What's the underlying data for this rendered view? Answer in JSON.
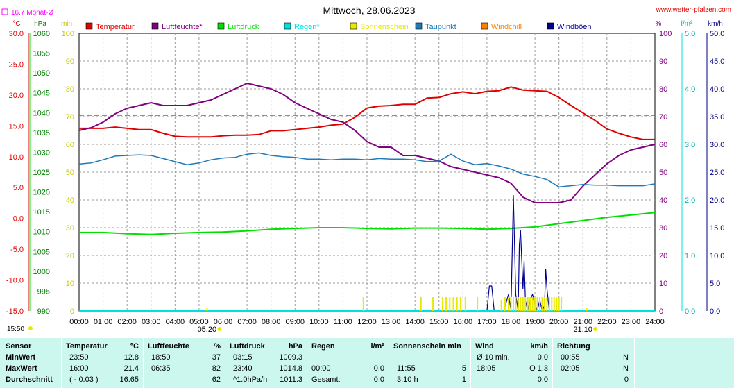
{
  "header": {
    "title": "Mittwoch, 28.06.2023",
    "site": "www.wetter-pfalzen.com",
    "monthly_avg": "16.7 Monat-Ø",
    "left_units": [
      "°C",
      "hPa",
      "min"
    ],
    "right_units": [
      "%",
      "l/m²",
      "km/h"
    ]
  },
  "legend": [
    {
      "label": "Temperatur",
      "color": "#e00000"
    },
    {
      "label": "Luftfeuchte*",
      "color": "#800080"
    },
    {
      "label": "Luftdruck",
      "color": "#00e000"
    },
    {
      "label": "Regen*",
      "color": "#00e0e0"
    },
    {
      "label": "Sonnenschein",
      "color": "#e8e800"
    },
    {
      "label": "Taupunkt",
      "color": "#1e7ab8"
    },
    {
      "label": "Windchill",
      "color": "#ff8000"
    },
    {
      "label": "Windböen",
      "color": "#000090"
    }
  ],
  "axes": {
    "temp_ticks": [
      "30.0",
      "25.0",
      "20.0",
      "15.0",
      "10.0",
      "5.0",
      "0.0",
      "-5.0",
      "-10.0",
      "-15.0"
    ],
    "hpa_ticks": [
      "1060",
      "1055",
      "1050",
      "1045",
      "1040",
      "1035",
      "1030",
      "1025",
      "1020",
      "1015",
      "1010",
      "1005",
      "1000",
      "995",
      "990"
    ],
    "min_ticks": [
      "100",
      "90",
      "80",
      "70",
      "60",
      "50",
      "40",
      "30",
      "20",
      "10",
      "0"
    ],
    "pct_ticks": [
      "100",
      "90",
      "80",
      "70",
      "60",
      "50",
      "40",
      "30",
      "20",
      "10",
      "0"
    ],
    "rain_ticks": [
      "5.0",
      "4.0",
      "3.0",
      "2.0",
      "1.0",
      "0.0"
    ],
    "wind_ticks": [
      "50.0",
      "45.0",
      "40.0",
      "35.0",
      "30.0",
      "25.0",
      "20.0",
      "15.0",
      "10.0",
      "5.0",
      "0.0"
    ],
    "x_ticks": [
      "00:00",
      "01:00",
      "02:00",
      "03:00",
      "04:00",
      "05:00",
      "06:00",
      "07:00",
      "08:00",
      "09:00",
      "10:00",
      "11:00",
      "12:00",
      "13:00",
      "14:00",
      "15:00",
      "16:00",
      "17:00",
      "18:00",
      "19:00",
      "20:00",
      "21:00",
      "22:00",
      "23:00",
      "24:00"
    ],
    "sunrise_label": "05:20",
    "sunset_label": "21:10",
    "left_time": "15:50"
  },
  "chart_data": {
    "type": "line",
    "title": "Mittwoch, 28.06.2023",
    "x_range": [
      "00:00",
      "24:00"
    ],
    "temp_range": [
      -15,
      30
    ],
    "pressure_range": [
      990,
      1060
    ],
    "humidity_range": [
      0,
      100
    ],
    "rain_range": [
      0,
      5
    ],
    "wind_range": [
      0,
      50
    ],
    "grid": true,
    "monthly_avg_temp": 16.7,
    "series": [
      {
        "name": "Temperatur",
        "unit": "°C",
        "color": "#e00000",
        "x": [
          0,
          0.5,
          1,
          1.5,
          2,
          2.5,
          3,
          3.5,
          4,
          4.5,
          5,
          5.5,
          6,
          6.5,
          7,
          7.5,
          8,
          8.5,
          9,
          9.5,
          10,
          10.5,
          11,
          11.5,
          12,
          12.5,
          13,
          13.5,
          14,
          14.5,
          15,
          15.5,
          16,
          16.5,
          17,
          17.5,
          18,
          18.5,
          19,
          19.5,
          20,
          20.5,
          21,
          21.5,
          22,
          22.5,
          23,
          23.5,
          24
        ],
        "y": [
          14.6,
          14.6,
          14.6,
          14.8,
          14.6,
          14.4,
          14.4,
          13.8,
          13.3,
          13.2,
          13.2,
          13.2,
          13.4,
          13.5,
          13.5,
          13.6,
          14.2,
          14.2,
          14.4,
          14.6,
          14.8,
          15.1,
          15.3,
          16.4,
          17.9,
          18.2,
          18.3,
          18.5,
          18.5,
          19.5,
          19.6,
          20.2,
          20.5,
          20.2,
          20.6,
          20.7,
          21.3,
          20.8,
          20.7,
          20.6,
          19.6,
          18.3,
          17.1,
          15.9,
          14.5,
          13.8,
          13.2,
          12.8,
          12.8
        ]
      },
      {
        "name": "Luftfeuchte*",
        "unit": "%",
        "color": "#800080",
        "x": [
          0,
          0.5,
          1,
          1.5,
          2,
          2.5,
          3,
          3.5,
          4,
          4.5,
          5,
          5.5,
          6,
          6.5,
          7,
          7.5,
          8,
          8.5,
          9,
          9.5,
          10,
          10.5,
          11,
          11.5,
          12,
          12.5,
          13,
          13.5,
          14,
          14.5,
          15,
          15.5,
          16,
          16.5,
          17,
          17.5,
          18,
          18.5,
          19,
          19.5,
          20,
          20.5,
          21,
          21.5,
          22,
          22.5,
          23,
          23.5,
          24
        ],
        "y": [
          65,
          66,
          68,
          71,
          73,
          74,
          75,
          74,
          74,
          74,
          75,
          76,
          78,
          80,
          82,
          81,
          80,
          78,
          75,
          73,
          71,
          69,
          68,
          65,
          61,
          59,
          59,
          56,
          56,
          55,
          54,
          52,
          51,
          50,
          49,
          48,
          46,
          41,
          39,
          39,
          39,
          40,
          45,
          49,
          53,
          56,
          58,
          59,
          60
        ]
      },
      {
        "name": "Luftdruck",
        "unit": "hPa",
        "color": "#00e000",
        "x": [
          0,
          1,
          2,
          3,
          4,
          5,
          6,
          7,
          8,
          9,
          10,
          11,
          12,
          13,
          14,
          15,
          16,
          17,
          18,
          19,
          20,
          21,
          22,
          23,
          24
        ],
        "y": [
          1009.8,
          1009.8,
          1009.5,
          1009.3,
          1009.6,
          1009.8,
          1009.9,
          1010.2,
          1010.6,
          1010.8,
          1011,
          1011,
          1010.8,
          1010.7,
          1010.9,
          1010.9,
          1010.8,
          1010.6,
          1010.8,
          1011.2,
          1012,
          1012.8,
          1013.6,
          1014.2,
          1014.8
        ]
      },
      {
        "name": "Taupunkt",
        "unit": "°C",
        "color": "#1e7ab8",
        "x": [
          0,
          0.5,
          1,
          1.5,
          2,
          2.5,
          3,
          3.5,
          4,
          4.5,
          5,
          5.5,
          6,
          6.5,
          7,
          7.5,
          8,
          8.5,
          9,
          9.5,
          10,
          10.5,
          11,
          11.5,
          12,
          12.5,
          13,
          13.5,
          14,
          14.5,
          15,
          15.5,
          16,
          16.5,
          17,
          17.5,
          18,
          18.5,
          19,
          19.5,
          20,
          20.5,
          21,
          21.5,
          22,
          22.5,
          23,
          23.5,
          24
        ],
        "y": [
          8.8,
          9.0,
          9.5,
          10.1,
          10.2,
          10.3,
          10.2,
          9.7,
          9.2,
          8.7,
          9.0,
          9.5,
          9.8,
          9.9,
          10.4,
          10.6,
          10.2,
          10.0,
          9.9,
          9.6,
          9.6,
          9.5,
          9.6,
          9.6,
          9.5,
          9.7,
          9.6,
          9.6,
          9.5,
          9.2,
          9.3,
          10.4,
          9.3,
          8.7,
          8.9,
          8.5,
          8.0,
          7.2,
          6.8,
          6.3,
          5.1,
          5.3,
          5.5,
          5.4,
          5.4,
          5.3,
          5.3,
          5.3,
          5.6
        ]
      },
      {
        "name": "Windböen",
        "unit": "km/h",
        "color": "#000090",
        "x": [
          17.0,
          17.1,
          17.2,
          17.3,
          17.4,
          17.5,
          17.6,
          17.7,
          17.8,
          17.9,
          18.0,
          18.05,
          18.1,
          18.15,
          18.2,
          18.3,
          18.35,
          18.4,
          18.5,
          18.55,
          18.6,
          18.7,
          18.8,
          18.9,
          19.0,
          19.1,
          19.2,
          19.3,
          19.4,
          19.45,
          19.5,
          19.6
        ],
        "y": [
          0,
          4.5,
          4.5,
          0,
          0,
          0,
          0,
          0,
          1.5,
          3.0,
          0,
          10,
          20.8,
          12,
          3,
          0,
          12,
          14.5,
          4,
          9,
          2,
          0,
          2,
          3,
          1,
          0,
          2,
          0,
          1,
          7.5,
          4,
          0
        ]
      },
      {
        "name": "Regen*",
        "unit": "l/m²",
        "color": "#00e0e0",
        "x": [
          0,
          24
        ],
        "y": [
          0,
          0
        ]
      },
      {
        "name": "Sonnenschein",
        "unit": "min",
        "color": "#e8e800",
        "x": [
          5.33,
          11.85,
          14.25,
          14.75,
          15.15,
          15.3,
          15.45,
          15.6,
          15.75,
          15.9,
          16.1,
          16.6,
          17.6,
          17.75,
          17.9,
          18.0,
          18.1,
          18.2,
          18.3,
          18.4,
          18.5,
          18.6,
          18.7,
          18.8,
          18.9,
          19.0,
          19.1,
          19.2,
          19.3,
          19.4,
          19.5,
          19.6,
          19.7,
          19.8,
          19.9,
          20.0,
          20.1,
          21.15
        ],
        "y": [
          1,
          5,
          5,
          5,
          5,
          5,
          5,
          5,
          5,
          5,
          5,
          5,
          4,
          5,
          5,
          5,
          5,
          5,
          5,
          5,
          5,
          5,
          5,
          5,
          5,
          5,
          5,
          5,
          5,
          5,
          5,
          5,
          5,
          5,
          5,
          5,
          5,
          1
        ]
      }
    ]
  },
  "stats": {
    "headers": {
      "sensor": "Sensor",
      "temp": "Temperatur",
      "temp_unit": "°C",
      "hum": "Luftfeuchte",
      "hum_unit": "%",
      "press": "Luftdruck",
      "press_unit": "hPa",
      "rain": "Regen",
      "rain_unit": "l/m²",
      "sun": "Sonnenschein min",
      "wind": "Wind",
      "wind_unit": "km/h",
      "dir": "Richtung"
    },
    "rows": [
      {
        "label": "MinWert",
        "temp_time": "23:50",
        "temp_val": "12.8",
        "hum_time": "18:50",
        "hum_val": "37",
        "press_time": "03:15",
        "press_val": "1009.3",
        "rain_time": "",
        "rain_val": "",
        "sun_time": "",
        "sun_val": "",
        "wind_time": "Ø 10 min.",
        "wind_val": "0.0",
        "dir_time": "00:55",
        "dir_val": "N"
      },
      {
        "label": "MaxWert",
        "temp_time": "16:00",
        "temp_val": "21.4",
        "hum_time": "06:35",
        "hum_val": "82",
        "press_time": "23:40",
        "press_val": "1014.8",
        "rain_time": "00:00",
        "rain_val": "0.0",
        "sun_time": "11:55",
        "sun_val": "5",
        "wind_time": "18:05",
        "wind_val": "O 1.3",
        "dir_time": "02:05",
        "dir_val": "N"
      },
      {
        "label": "Durchschnitt",
        "temp_time": "( - 0.03 )",
        "temp_val": "16.65",
        "hum_time": "",
        "hum_val": "62",
        "press_time": "^1.0hPa/h",
        "press_val": "1011.3",
        "rain_time": "Gesamt:",
        "rain_val": "0.0",
        "sun_time": "3:10 h",
        "sun_val": "1",
        "wind_time": "",
        "wind_val": "0.0",
        "dir_time": "",
        "dir_val": "0"
      }
    ]
  }
}
